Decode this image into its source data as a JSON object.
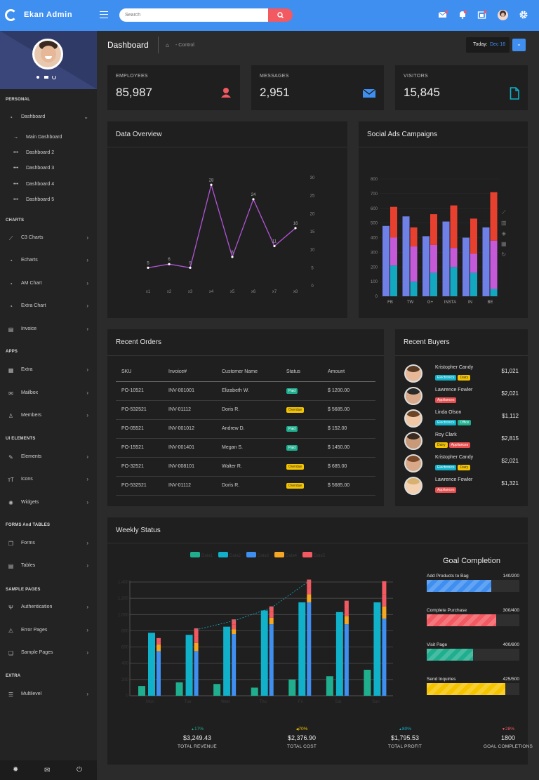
{
  "app": {
    "name": "Ekan Admin"
  },
  "search": {
    "placeholder": "Search"
  },
  "header": {
    "title": "Dashboard",
    "breadcrumb": "- Control",
    "today_label": "Today:",
    "today_value": "Dec 16"
  },
  "sidebar": {
    "sections": {
      "personal": "PERSONAL",
      "charts": "CHARTS",
      "apps": "APPS",
      "ui": "UI ELEMENTS",
      "forms": "FORMS And TABLES",
      "sample": "SAMPLE PAGES",
      "extra": "EXTRA"
    },
    "dashboard": "Dashboard",
    "sub": [
      "Main Dashboard",
      "Dashboard 2",
      "Dashboard 3",
      "Dashboard 4",
      "Dashboard 5"
    ],
    "charts": [
      "C3 Charts",
      "Echarts",
      "AM Chart",
      "Extra Chart",
      "Invoice"
    ],
    "apps": [
      "Extra",
      "Mailbox",
      "Members"
    ],
    "ui": [
      "Elements",
      "Icons",
      "Widgets"
    ],
    "forms": [
      "Forms",
      "Tables"
    ],
    "sample": [
      "Authentication",
      "Error Pages",
      "Sample Pages"
    ],
    "extra": [
      "Multilevel"
    ]
  },
  "stats": [
    {
      "label": "EMPLOYEES",
      "value": "85,987",
      "icon": "user-icon",
      "color": "#f25961"
    },
    {
      "label": "MESSAGES",
      "value": "2,951",
      "icon": "mail-icon",
      "color": "#3f8ff0"
    },
    {
      "label": "VISITORS",
      "value": "15,845",
      "icon": "file-icon",
      "color": "#10b1c9"
    }
  ],
  "cards": {
    "overview": "Data Overview",
    "social": "Social Ads Campaigns",
    "orders": "Recent Orders",
    "buyers": "Recent Buyers",
    "weekly": "Weekly Status",
    "goal": "Goal Completion"
  },
  "orders": {
    "headers": [
      "SKU",
      "Invoice#",
      "Customer Name",
      "Status",
      "Amount"
    ],
    "rows": [
      [
        "PO-10521",
        "INV-001001",
        "Elizabeth W.",
        "Paid",
        "$ 1200.00"
      ],
      [
        "PO-532521",
        "INV-01112",
        "Doris R.",
        "Overdue",
        "$ 5685.00"
      ],
      [
        "PO-05521",
        "INV-001012",
        "Andrew D.",
        "Paid",
        "$ 152.00"
      ],
      [
        "PO-15521",
        "INV-001401",
        "Megan S.",
        "Paid",
        "$ 1450.00"
      ],
      [
        "PO-32521",
        "INV-008101",
        "Walter R.",
        "Overdue",
        "$ 685.00"
      ],
      [
        "PO-532521",
        "INV-01112",
        "Doris R.",
        "Overdue",
        "$ 5685.00"
      ]
    ]
  },
  "buyers": [
    {
      "name": "Kristopher Candy",
      "amount": "$1,021",
      "tags": [
        "Electronics",
        "Dairy"
      ]
    },
    {
      "name": "Lawrence Fowler",
      "amount": "$2,021",
      "tags": [
        "Appliances"
      ]
    },
    {
      "name": "Linda Olson",
      "amount": "$1,112",
      "tags": [
        "Electronics",
        "Office"
      ]
    },
    {
      "name": "Roy Clark",
      "amount": "$2,815",
      "tags": [
        "Dairy",
        "Appliances"
      ]
    },
    {
      "name": "Kristopher Candy",
      "amount": "$2,021",
      "tags": [
        "Electronics",
        "Dairy"
      ]
    },
    {
      "name": "Lawrence Fowler",
      "amount": "$1,321",
      "tags": [
        "Appliances"
      ]
    }
  ],
  "goals": [
    {
      "label": "Add Products to Bag",
      "value": "140/200",
      "pct": 70,
      "color": "#3f8ff0"
    },
    {
      "label": "Complete Purchase",
      "value": "300/400",
      "pct": 75,
      "color": "#f25961"
    },
    {
      "label": "Visit Page",
      "value": "400/800",
      "pct": 50,
      "color": "#1fae8e"
    },
    {
      "label": "Send Inquiries",
      "value": "425/500",
      "pct": 85,
      "color": "#f5c400"
    }
  ],
  "summary": [
    {
      "pct": "17%",
      "dir": "up",
      "value": "$3,249.43",
      "label": "TOTAL REVENUE",
      "color": "#1fae8e"
    },
    {
      "pct": "70%",
      "dir": "left",
      "value": "$2,376.90",
      "label": "TOTAL COST",
      "color": "#f5c400"
    },
    {
      "pct": "80%",
      "dir": "up",
      "value": "$1,795.53",
      "label": "TOTAL PROFIT",
      "color": "#10b1c9"
    },
    {
      "pct": "28%",
      "dir": "down",
      "value": "1800",
      "label": "GOAL COMPLETIONS",
      "color": "#f25961"
    }
  ],
  "chart_data": [
    {
      "type": "line",
      "title": "Data Overview",
      "categories": [
        "x1",
        "x2",
        "x3",
        "x4",
        "x5",
        "x6",
        "x7",
        "x8"
      ],
      "values": [
        5,
        6,
        5,
        28,
        8,
        24,
        11,
        16
      ],
      "ylim": [
        0,
        30
      ],
      "yticks": [
        0,
        5,
        10,
        15,
        20,
        25,
        30
      ]
    },
    {
      "type": "bar",
      "title": "Social Ads Campaigns",
      "categories": [
        "FB",
        "TW",
        "G+",
        "INSTA",
        "IN",
        "BE"
      ],
      "yticks": [
        0,
        100,
        200,
        300,
        400,
        500,
        600,
        700,
        800
      ],
      "ylim": [
        0,
        800
      ],
      "groups": [
        {
          "category": "FB",
          "bars": [
            [
              480
            ],
            [
              210,
              190,
              210
            ]
          ]
        },
        {
          "category": "TW",
          "bars": [
            [
              545
            ],
            [
              100,
              240,
              130
            ]
          ]
        },
        {
          "category": "G+",
          "bars": [
            [
              410
            ],
            [
              160,
              190,
              210
            ]
          ]
        },
        {
          "category": "INSTA",
          "bars": [
            [
              510
            ],
            [
              200,
              130,
              290
            ]
          ]
        },
        {
          "category": "IN",
          "bars": [
            [
              400
            ],
            [
              160,
              130,
              240
            ]
          ]
        },
        {
          "category": "BE",
          "bars": [
            [
              470
            ],
            [
              50,
              330,
              330
            ]
          ]
        }
      ],
      "series_colors": [
        "#14a7c0",
        "#c45ad8",
        "#e8402f"
      ],
      "solid_color": "#6f80e6"
    },
    {
      "type": "bar",
      "title": "Weekly Status",
      "categories": [
        "Mon",
        "Tue",
        "Wed",
        "Thu",
        "Fri",
        "Sat",
        "Sun"
      ],
      "legend": [
        "Data1",
        "Data2",
        "Data3",
        "Data4",
        "Data5"
      ],
      "colors": [
        "#1fae8e",
        "#10b1c9",
        "#3f8ff0",
        "#f5a623",
        "#f25961"
      ],
      "yticks": [
        0,
        200,
        400,
        600,
        800,
        1000,
        1200,
        1400
      ],
      "ylim": [
        0,
        1400
      ],
      "data1": [
        120,
        165,
        145,
        100,
        200,
        240,
        320
      ],
      "data2": [
        775,
        750,
        850,
        1050,
        1150,
        1030,
        1150
      ],
      "stacks": [
        [
          550,
          80,
          40,
          40
        ],
        [
          550,
          100,
          80,
          100
        ],
        [
          760,
          60,
          60,
          60
        ],
        [
          880,
          80,
          70,
          70
        ],
        [
          1150,
          100,
          80,
          100
        ],
        [
          880,
          100,
          100,
          90
        ],
        [
          950,
          150,
          150,
          160
        ]
      ]
    }
  ]
}
